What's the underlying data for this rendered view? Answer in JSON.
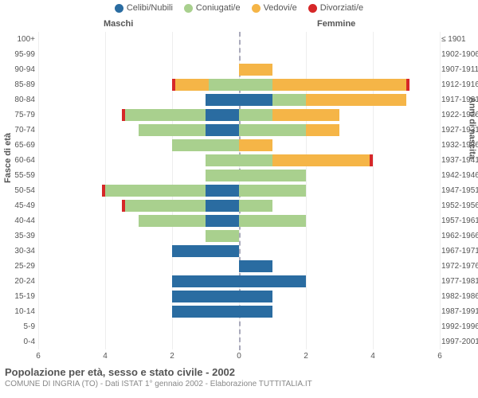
{
  "legend": [
    {
      "label": "Celibi/Nubili",
      "color": "#2a6ca1"
    },
    {
      "label": "Coniugati/e",
      "color": "#a9d08e"
    },
    {
      "label": "Vedovi/e",
      "color": "#f5b547"
    },
    {
      "label": "Divorziati/e",
      "color": "#d62728"
    }
  ],
  "headers": {
    "left": "Maschi",
    "right": "Femmine"
  },
  "axis_titles": {
    "left": "Fasce di età",
    "right": "Anni di nascita"
  },
  "xaxis": {
    "max": 6,
    "ticks_left": [
      6,
      4,
      2,
      0
    ],
    "ticks_right": [
      2,
      4,
      6
    ]
  },
  "title": "Popolazione per età, sesso e stato civile - 2002",
  "subtitle": "COMUNE DI INGRIA (TO) - Dati ISTAT 1° gennaio 2002 - Elaborazione TUTTITALIA.IT",
  "colors": {
    "background": "#ffffff",
    "grid": "#eeeeee",
    "center_line": "#aab",
    "text": "#555555",
    "subtext": "#888888"
  },
  "rows": [
    {
      "age": "100+",
      "birth": "≤ 1901",
      "m": {
        "cel": 0,
        "con": 0,
        "ved": 0,
        "div": 0
      },
      "f": {
        "cel": 0,
        "con": 0,
        "ved": 0,
        "div": 0
      }
    },
    {
      "age": "95-99",
      "birth": "1902-1906",
      "m": {
        "cel": 0,
        "con": 0,
        "ved": 0,
        "div": 0
      },
      "f": {
        "cel": 0,
        "con": 0,
        "ved": 0,
        "div": 0
      }
    },
    {
      "age": "90-94",
      "birth": "1907-1911",
      "m": {
        "cel": 0,
        "con": 0,
        "ved": 0,
        "div": 0
      },
      "f": {
        "cel": 0,
        "con": 0,
        "ved": 1,
        "div": 0
      }
    },
    {
      "age": "85-89",
      "birth": "1912-1916",
      "m": {
        "cel": 0,
        "con": 0.9,
        "ved": 1,
        "div": 0.1
      },
      "f": {
        "cel": 0,
        "con": 1,
        "ved": 4,
        "div": 0.1
      }
    },
    {
      "age": "80-84",
      "birth": "1917-1921",
      "m": {
        "cel": 1,
        "con": 0,
        "ved": 0,
        "div": 0
      },
      "f": {
        "cel": 1,
        "con": 1,
        "ved": 3,
        "div": 0
      }
    },
    {
      "age": "75-79",
      "birth": "1922-1926",
      "m": {
        "cel": 1,
        "con": 2.4,
        "ved": 0,
        "div": 0.1
      },
      "f": {
        "cel": 0,
        "con": 1,
        "ved": 2,
        "div": 0
      }
    },
    {
      "age": "70-74",
      "birth": "1927-1931",
      "m": {
        "cel": 1,
        "con": 2,
        "ved": 0,
        "div": 0
      },
      "f": {
        "cel": 0,
        "con": 2,
        "ved": 1,
        "div": 0
      }
    },
    {
      "age": "65-69",
      "birth": "1932-1936",
      "m": {
        "cel": 0,
        "con": 2,
        "ved": 0,
        "div": 0
      },
      "f": {
        "cel": 0,
        "con": 0,
        "ved": 1,
        "div": 0
      }
    },
    {
      "age": "60-64",
      "birth": "1937-1941",
      "m": {
        "cel": 0,
        "con": 1,
        "ved": 0,
        "div": 0
      },
      "f": {
        "cel": 0,
        "con": 1,
        "ved": 2.9,
        "div": 0.1
      }
    },
    {
      "age": "55-59",
      "birth": "1942-1946",
      "m": {
        "cel": 0,
        "con": 1,
        "ved": 0,
        "div": 0
      },
      "f": {
        "cel": 0,
        "con": 2,
        "ved": 0,
        "div": 0
      }
    },
    {
      "age": "50-54",
      "birth": "1947-1951",
      "m": {
        "cel": 1,
        "con": 3,
        "ved": 0,
        "div": 0.1
      },
      "f": {
        "cel": 0,
        "con": 2,
        "ved": 0,
        "div": 0
      }
    },
    {
      "age": "45-49",
      "birth": "1952-1956",
      "m": {
        "cel": 1,
        "con": 2.4,
        "ved": 0,
        "div": 0.1
      },
      "f": {
        "cel": 0,
        "con": 1,
        "ved": 0,
        "div": 0
      }
    },
    {
      "age": "40-44",
      "birth": "1957-1961",
      "m": {
        "cel": 1,
        "con": 2,
        "ved": 0,
        "div": 0
      },
      "f": {
        "cel": 0,
        "con": 2,
        "ved": 0,
        "div": 0
      }
    },
    {
      "age": "35-39",
      "birth": "1962-1966",
      "m": {
        "cel": 0,
        "con": 1,
        "ved": 0,
        "div": 0
      },
      "f": {
        "cel": 0,
        "con": 0,
        "ved": 0,
        "div": 0
      }
    },
    {
      "age": "30-34",
      "birth": "1967-1971",
      "m": {
        "cel": 2,
        "con": 0,
        "ved": 0,
        "div": 0
      },
      "f": {
        "cel": 0,
        "con": 0,
        "ved": 0,
        "div": 0
      }
    },
    {
      "age": "25-29",
      "birth": "1972-1976",
      "m": {
        "cel": 0,
        "con": 0,
        "ved": 0,
        "div": 0
      },
      "f": {
        "cel": 1,
        "con": 0,
        "ved": 0,
        "div": 0
      }
    },
    {
      "age": "20-24",
      "birth": "1977-1981",
      "m": {
        "cel": 2,
        "con": 0,
        "ved": 0,
        "div": 0
      },
      "f": {
        "cel": 2,
        "con": 0,
        "ved": 0,
        "div": 0
      }
    },
    {
      "age": "15-19",
      "birth": "1982-1986",
      "m": {
        "cel": 2,
        "con": 0,
        "ved": 0,
        "div": 0
      },
      "f": {
        "cel": 1,
        "con": 0,
        "ved": 0,
        "div": 0
      }
    },
    {
      "age": "10-14",
      "birth": "1987-1991",
      "m": {
        "cel": 2,
        "con": 0,
        "ved": 0,
        "div": 0
      },
      "f": {
        "cel": 1,
        "con": 0,
        "ved": 0,
        "div": 0
      }
    },
    {
      "age": "5-9",
      "birth": "1992-1996",
      "m": {
        "cel": 0,
        "con": 0,
        "ved": 0,
        "div": 0
      },
      "f": {
        "cel": 0,
        "con": 0,
        "ved": 0,
        "div": 0
      }
    },
    {
      "age": "0-4",
      "birth": "1997-2001",
      "m": {
        "cel": 0,
        "con": 0,
        "ved": 0,
        "div": 0
      },
      "f": {
        "cel": 0,
        "con": 0,
        "ved": 0,
        "div": 0
      }
    }
  ]
}
